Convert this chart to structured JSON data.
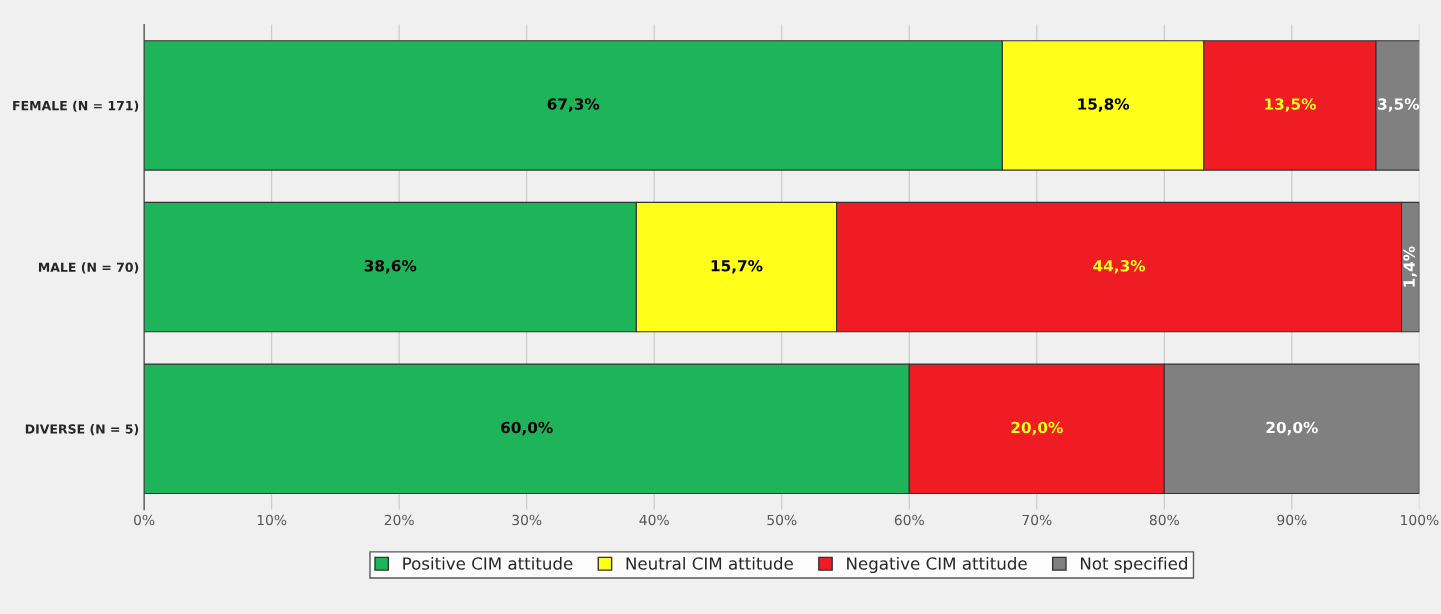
{
  "chart_data": {
    "type": "bar",
    "orientation": "horizontal",
    "stacked": true,
    "categories": [
      "FEMALE (N = 171)",
      "MALE (N = 70)",
      "DIVERSE (N = 5)"
    ],
    "series": [
      {
        "name": "Positive CIM attitude",
        "color": "#1db45a",
        "values": [
          67.3,
          38.6,
          60.0
        ],
        "value_labels": [
          "67,3%",
          "38,6%",
          "60,0%"
        ]
      },
      {
        "name": "Neutral CIM attitude",
        "color": "#ffff1a",
        "values": [
          15.8,
          15.7,
          null
        ],
        "value_labels": [
          "15,8%",
          "15,7%",
          null
        ]
      },
      {
        "name": "Negative CIM attitude",
        "color": "#ef1c24",
        "values": [
          13.5,
          44.3,
          20.0
        ],
        "value_labels": [
          "13,5%",
          "44,3%",
          "20,0%"
        ]
      },
      {
        "name": "Not specified",
        "color": "#808080",
        "values": [
          3.5,
          1.4,
          20.0
        ],
        "value_labels": [
          "3,5%",
          "1,4%",
          "20,0%"
        ]
      }
    ],
    "xlim": [
      0,
      100
    ],
    "xticks": [
      {
        "value": 0,
        "label": "0%"
      },
      {
        "value": 10,
        "label": "10%"
      },
      {
        "value": 20,
        "label": "20%"
      },
      {
        "value": 30,
        "label": "30%"
      },
      {
        "value": 40,
        "label": "40%"
      },
      {
        "value": 50,
        "label": "50%"
      },
      {
        "value": 60,
        "label": "60%"
      },
      {
        "value": 70,
        "label": "70%"
      },
      {
        "value": 80,
        "label": "80%"
      },
      {
        "value": 90,
        "label": "90%"
      },
      {
        "value": 100,
        "label": "100%"
      }
    ],
    "grid": "x",
    "legend": "bottom"
  }
}
